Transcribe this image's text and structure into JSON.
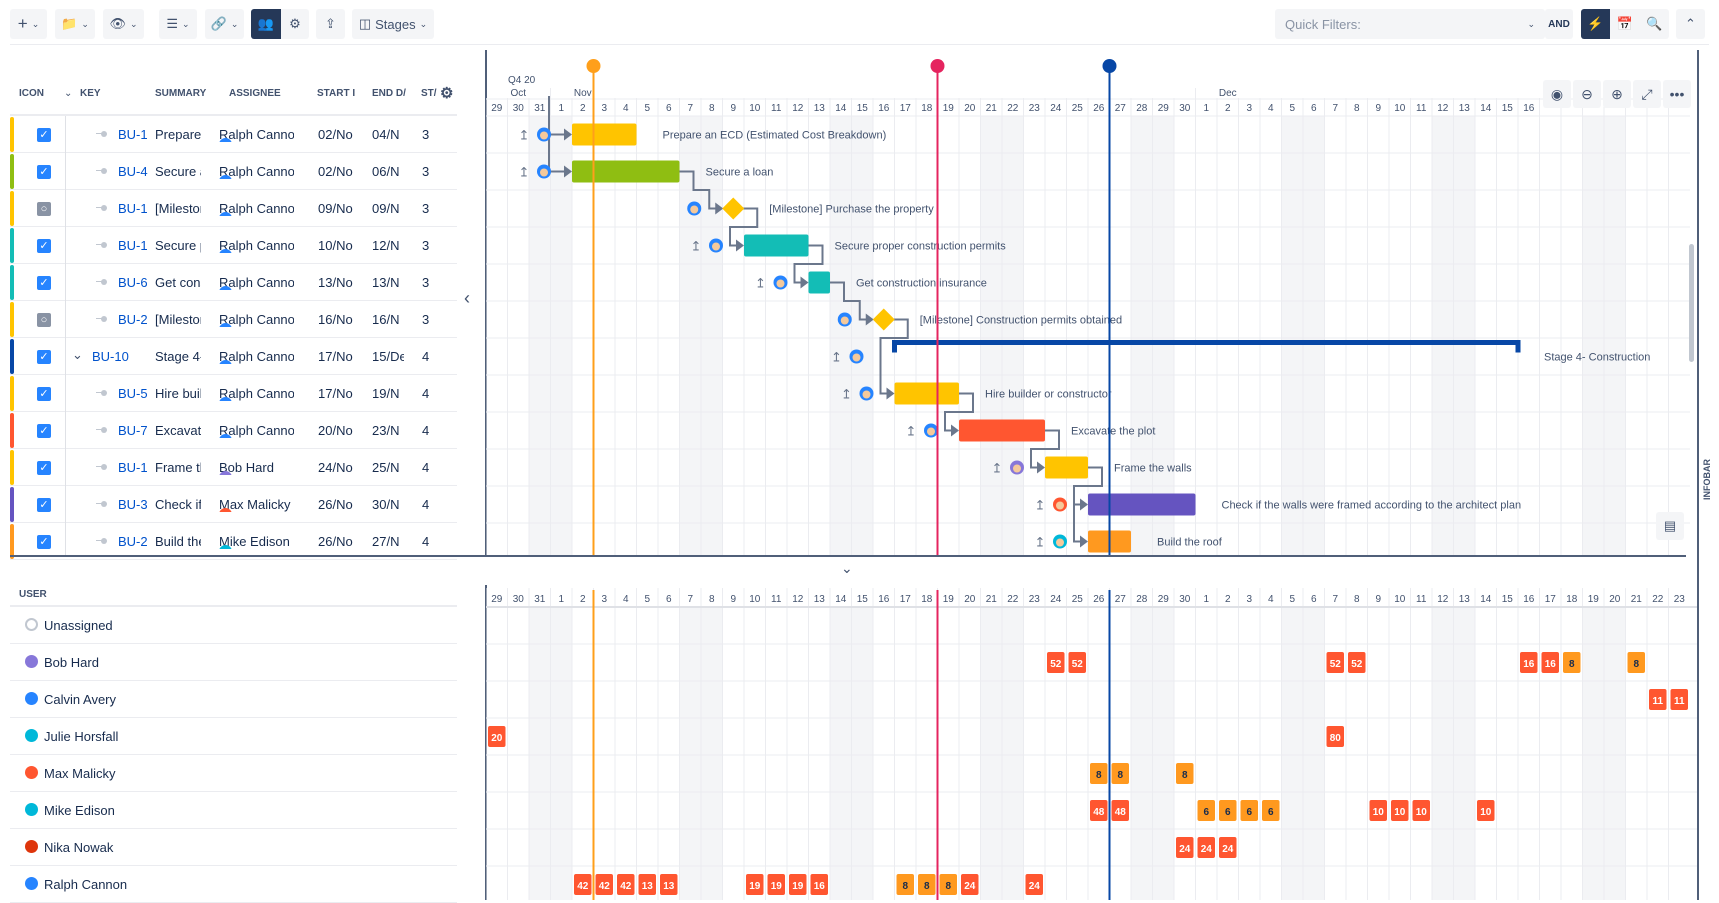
{
  "toolbar": {
    "buttons": [
      {
        "icon": "plus-icon"
      },
      {
        "icon": "folder-icon"
      },
      {
        "icon": "eye-icon"
      },
      {
        "icon": "list-icon"
      },
      {
        "icon": "link-icon"
      },
      {
        "icon": "team-icon"
      },
      {
        "icon": "gear-icon"
      },
      {
        "icon": "upload-icon"
      }
    ],
    "stages_label": "Stages",
    "quick_filters_placeholder": "Quick Filters:",
    "and_label": "AND"
  },
  "table": {
    "headers": {
      "icon": "ICON",
      "key": "KEY",
      "summary": "SUMMARY",
      "assignee": "ASSIGNEE",
      "start": "START I",
      "end": "END D/",
      "status": "ST/"
    },
    "rows": [
      {
        "key": "BU-1",
        "summary": "Prepare an ECD (Estimated Cost Breakdown)",
        "assignee": "Ralph Cannon",
        "start": "02/No",
        "end": "04/N",
        "st": "3",
        "color": "#ffc400",
        "type": "task",
        "done": true
      },
      {
        "key": "BU-4",
        "summary": "Secure a loan",
        "assignee": "Ralph Cannon",
        "start": "02/No",
        "end": "06/N",
        "st": "3",
        "color": "#8fbe12",
        "type": "task",
        "done": true
      },
      {
        "key": "BU-1",
        "summary": "[Milestone] Purchase the property",
        "assignee": "Ralph Cannon",
        "start": "09/No",
        "end": "09/N",
        "st": "3",
        "color": "#ffc400",
        "type": "milestone",
        "done": false
      },
      {
        "key": "BU-1",
        "summary": "Secure proper construction permits",
        "assignee": "Ralph Cannon",
        "start": "10/No",
        "end": "12/N",
        "st": "3",
        "color": "#13bdb6",
        "type": "task",
        "done": true
      },
      {
        "key": "BU-6",
        "summary": "Get construction insurance",
        "assignee": "Ralph Cannon",
        "start": "13/No",
        "end": "13/N",
        "st": "3",
        "color": "#13bdb6",
        "type": "task",
        "done": true
      },
      {
        "key": "BU-2",
        "summary": "[Milestone] Construction permits obtained",
        "assignee": "Ralph Cannon",
        "start": "16/No",
        "end": "16/N",
        "st": "3",
        "color": "#ffc400",
        "type": "milestone",
        "done": false
      },
      {
        "key": "BU-10",
        "summary": "Stage 4- Construction",
        "assignee": "Ralph Cannon",
        "start": "17/No",
        "end": "15/De",
        "st": "4",
        "color": "#0747a6",
        "type": "stage",
        "done": true
      },
      {
        "key": "BU-5",
        "summary": "Hire builder or constructor",
        "assignee": "Ralph Cannon",
        "start": "17/No",
        "end": "19/N",
        "st": "4",
        "color": "#ffc400",
        "type": "task",
        "done": true
      },
      {
        "key": "BU-7",
        "summary": "Excavate the plot",
        "assignee": "Ralph Cannon",
        "start": "20/No",
        "end": "23/N",
        "st": "4",
        "color": "#ff5630",
        "type": "task",
        "done": true
      },
      {
        "key": "BU-1",
        "summary": "Frame the walls",
        "assignee": "Bob Hard",
        "start": "24/No",
        "end": "25/N",
        "st": "4",
        "color": "#ffc400",
        "type": "task",
        "done": true
      },
      {
        "key": "BU-3",
        "summary": "Check if the walls were framed according to the architect plan",
        "assignee": "Max Malicky",
        "start": "26/No",
        "end": "30/N",
        "st": "4",
        "color": "#6554c0",
        "type": "task",
        "done": true
      },
      {
        "key": "BU-2",
        "summary": "Build the roof",
        "assignee": "Mike Edison",
        "start": "26/No",
        "end": "27/N",
        "st": "4",
        "color": "#ff991f",
        "type": "task",
        "done": true
      }
    ]
  },
  "gantt": {
    "quarter": "Q4 20",
    "months": [
      {
        "label": "Oct",
        "start": "2020-10-29"
      },
      {
        "label": "Nov",
        "start": "2020-11-01"
      },
      {
        "label": "Dec",
        "start": "2020-12-01"
      }
    ],
    "first_day": "2020-10-29",
    "markers": [
      {
        "date": "2020-11-03",
        "color": "#ff9f1a"
      },
      {
        "date": "2020-11-19",
        "color": "#e5245f"
      },
      {
        "date": "2020-11-27",
        "color": "#0747a6"
      }
    ],
    "bars": [
      {
        "start": "2020-11-02",
        "end": "2020-11-04"
      },
      {
        "start": "2020-11-02",
        "end": "2020-11-06"
      },
      {
        "start": "2020-11-09",
        "end": "2020-11-09"
      },
      {
        "start": "2020-11-10",
        "end": "2020-11-12"
      },
      {
        "start": "2020-11-13",
        "end": "2020-11-13"
      },
      {
        "start": "2020-11-16",
        "end": "2020-11-16"
      },
      {
        "start": "2020-11-17",
        "end": "2020-12-15"
      },
      {
        "start": "2020-11-17",
        "end": "2020-11-19"
      },
      {
        "start": "2020-11-20",
        "end": "2020-11-23"
      },
      {
        "start": "2020-11-24",
        "end": "2020-11-25"
      },
      {
        "start": "2020-11-26",
        "end": "2020-11-30"
      },
      {
        "start": "2020-11-26",
        "end": "2020-11-27"
      }
    ],
    "dependencies": [
      [
        1,
        2
      ],
      [
        2,
        3
      ],
      [
        3,
        4
      ],
      [
        4,
        5
      ],
      [
        5,
        7
      ],
      [
        7,
        8
      ],
      [
        8,
        9
      ],
      [
        9,
        10
      ],
      [
        9,
        11
      ]
    ],
    "zoom_controls": [
      "target-icon",
      "zoom-out-icon",
      "zoom-in-icon",
      "expand-icon",
      "more-icon"
    ],
    "infobar_label": "INFOBAR"
  },
  "resources": {
    "header": "USER",
    "users": [
      {
        "name": "Unassigned",
        "color": "#c1c7d0",
        "alloc": []
      },
      {
        "name": "Bob Hard",
        "color": "#8777d9",
        "alloc": [
          [
            "2020-11-24",
            52,
            "r"
          ],
          [
            "2020-11-25",
            52,
            "r"
          ],
          [
            "2020-12-07",
            52,
            "r"
          ],
          [
            "2020-12-08",
            52,
            "r"
          ],
          [
            "2020-12-16",
            16,
            "r"
          ],
          [
            "2020-12-17",
            16,
            "r"
          ],
          [
            "2020-12-18",
            8,
            "o"
          ],
          [
            "2020-12-21",
            8,
            "o"
          ]
        ]
      },
      {
        "name": "Calvin Avery",
        "color": "#2684ff",
        "alloc": [
          [
            "2020-12-22",
            11,
            "r"
          ],
          [
            "2020-12-23",
            11,
            "r"
          ]
        ]
      },
      {
        "name": "Julie Horsfall",
        "color": "#00b8d9",
        "alloc": [
          [
            "2020-10-29",
            20,
            "r"
          ],
          [
            "2020-12-07",
            80,
            "r"
          ]
        ]
      },
      {
        "name": "Max Malicky",
        "color": "#ff5630",
        "alloc": [
          [
            "2020-11-26",
            8,
            "o"
          ],
          [
            "2020-11-27",
            8,
            "o"
          ],
          [
            "2020-11-30",
            8,
            "o"
          ]
        ]
      },
      {
        "name": "Mike Edison",
        "color": "#00b8d9",
        "alloc": [
          [
            "2020-11-26",
            48,
            "r"
          ],
          [
            "2020-11-27",
            48,
            "r"
          ],
          [
            "2020-12-01",
            6,
            "o"
          ],
          [
            "2020-12-02",
            6,
            "o"
          ],
          [
            "2020-12-03",
            6,
            "o"
          ],
          [
            "2020-12-04",
            6,
            "o"
          ],
          [
            "2020-12-09",
            10,
            "r"
          ],
          [
            "2020-12-10",
            10,
            "r"
          ],
          [
            "2020-12-11",
            10,
            "r"
          ],
          [
            "2020-12-14",
            10,
            "r"
          ]
        ]
      },
      {
        "name": "Nika Nowak",
        "color": "#de350b",
        "alloc": [
          [
            "2020-11-30",
            24,
            "r"
          ],
          [
            "2020-12-01",
            24,
            "r"
          ],
          [
            "2020-12-02",
            24,
            "r"
          ]
        ]
      },
      {
        "name": "Ralph Cannon",
        "color": "#2684ff",
        "alloc": [
          [
            "2020-11-02",
            42,
            "r"
          ],
          [
            "2020-11-03",
            42,
            "r"
          ],
          [
            "2020-11-04",
            42,
            "r"
          ],
          [
            "2020-11-05",
            13,
            "r"
          ],
          [
            "2020-11-06",
            13,
            "r"
          ],
          [
            "2020-11-10",
            19,
            "r"
          ],
          [
            "2020-11-11",
            19,
            "r"
          ],
          [
            "2020-11-12",
            19,
            "r"
          ],
          [
            "2020-11-13",
            16,
            "r"
          ],
          [
            "2020-11-17",
            8,
            "o"
          ],
          [
            "2020-11-18",
            8,
            "o"
          ],
          [
            "2020-11-19",
            8,
            "o"
          ],
          [
            "2020-11-20",
            24,
            "r"
          ],
          [
            "2020-11-23",
            24,
            "r"
          ]
        ]
      }
    ],
    "colors": {
      "r": "#ff5630",
      "o": "#ff991f"
    }
  }
}
